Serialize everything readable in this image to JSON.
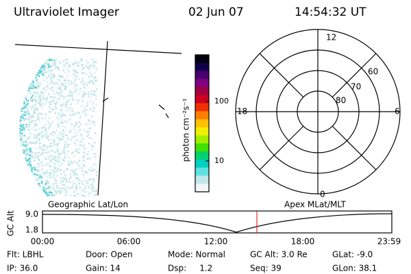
{
  "header": {
    "instrument": "Ultraviolet Imager",
    "date": "02 Jun 07",
    "time": "14:54:32 UT"
  },
  "colorbar": {
    "label": "photon cm⁻²s⁻¹",
    "ticks": [
      "100",
      "10"
    ]
  },
  "polar": {
    "mlt_labels": [
      "12",
      "18",
      "6",
      "0"
    ],
    "mlat_labels": [
      "60",
      "70",
      "80"
    ]
  },
  "map_labels": {
    "left": "Geographic Lat/Lon",
    "right": "Apex MLat/MLT"
  },
  "altitude_plot": {
    "axis_label": "GC Alt",
    "y_labels": [
      "9.0",
      "1.8"
    ],
    "x_labels": [
      "00:00",
      "06:00",
      "12:00",
      "18:00",
      "23:59"
    ]
  },
  "info": {
    "rows": [
      [
        "Flt: LBHL",
        "Door: Open",
        "Mode: Normal",
        "GC Alt: 3.0 Re",
        "GLat: -9.0"
      ],
      [
        "IP: 36.0",
        "Gain: 14",
        "Dsp:     1.2",
        "Seq: 39",
        "GLon: 38.1"
      ]
    ]
  }
}
